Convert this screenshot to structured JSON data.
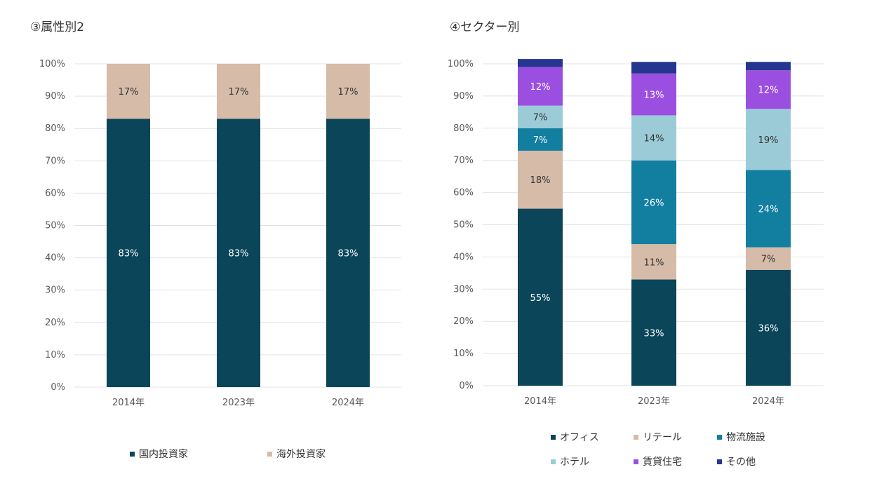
{
  "charts": {
    "left": {
      "title": "③属性別2"
    },
    "right": {
      "title": "④セクター別"
    }
  },
  "chart_data": [
    {
      "type": "bar",
      "stacked": true,
      "title": "③属性別2",
      "categories": [
        "2014年",
        "2023年",
        "2024年"
      ],
      "ylim": [
        0,
        100
      ],
      "yticks": [
        "0%",
        "10%",
        "20%",
        "30%",
        "40%",
        "50%",
        "60%",
        "70%",
        "80%",
        "90%",
        "100%"
      ],
      "grid": true,
      "legend_position": "bottom",
      "series": [
        {
          "name": "国内投資家",
          "color": "#0b4559",
          "values": [
            83,
            83,
            83
          ],
          "labels": [
            "83%",
            "83%",
            "83%"
          ],
          "label_color": "#ffffff"
        },
        {
          "name": "海外投資家",
          "color": "#d6bba8",
          "values": [
            17,
            17,
            17
          ],
          "labels": [
            "17%",
            "17%",
            "17%"
          ],
          "label_color": "#333333"
        }
      ]
    },
    {
      "type": "bar",
      "stacked": true,
      "title": "④セクター別",
      "categories": [
        "2014年",
        "2023年",
        "2024年"
      ],
      "ylim": [
        0,
        100
      ],
      "yticks": [
        "0%",
        "10%",
        "20%",
        "30%",
        "40%",
        "50%",
        "60%",
        "70%",
        "80%",
        "90%",
        "100%"
      ],
      "grid": true,
      "legend_position": "bottom",
      "series": [
        {
          "name": "オフィス",
          "color": "#0b4559",
          "values": [
            55,
            33,
            36
          ],
          "labels": [
            "55%",
            "33%",
            "36%"
          ],
          "label_color": "#ffffff"
        },
        {
          "name": "リテール",
          "color": "#d6bba8",
          "values": [
            18,
            11,
            7
          ],
          "labels": [
            "18%",
            "11%",
            "7%"
          ],
          "label_color": "#333333"
        },
        {
          "name": "物流施設",
          "color": "#127ea0",
          "values": [
            7,
            26,
            24
          ],
          "labels": [
            "7%",
            "26%",
            "24%"
          ],
          "label_color": "#ffffff"
        },
        {
          "name": "ホテル",
          "color": "#9ccbd8",
          "values": [
            7,
            14,
            19
          ],
          "labels": [
            "7%",
            "14%",
            "19%"
          ],
          "label_color": "#333333"
        },
        {
          "name": "賃貸住宅",
          "color": "#9b4fe0",
          "values": [
            12,
            13,
            12
          ],
          "labels": [
            "12%",
            "13%",
            "12%"
          ],
          "label_color": "#ffffff"
        },
        {
          "name": "その他",
          "color": "#24368f",
          "values": [
            2.5,
            3.6,
            2.6
          ],
          "labels": [
            "",
            "",
            ""
          ],
          "label_color": "#ffffff"
        }
      ]
    }
  ]
}
